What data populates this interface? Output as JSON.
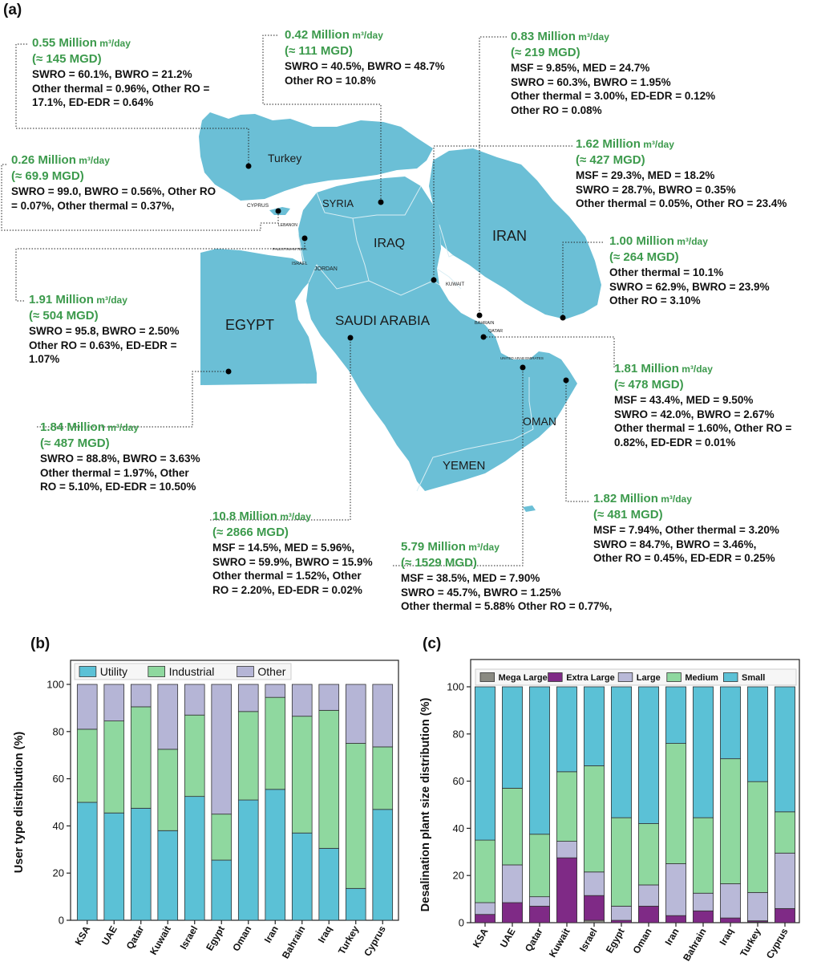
{
  "panel_labels": {
    "a": "(a)",
    "b": "(b)",
    "c": "(c)"
  },
  "map": {
    "country_labels": {
      "turkey": "Turkey",
      "syria": "SYRIA",
      "iraq": "IRAQ",
      "iran": "IRAN",
      "egypt": "EGYPT",
      "saudi": "SAUDI ARABIA",
      "oman": "OMAN",
      "yemen": "YEMEN",
      "cyprus": "CYPRUS",
      "lebanon": "LEBANON",
      "palestinian": "PALESTINIAN TERR.",
      "israel": "ISRAEL",
      "jordan": "JORDAN",
      "kuwait": "KUWAIT",
      "bahrain": "BAHRAIN",
      "qatar": "QATAR",
      "uae": "UNITED ARAB EMIRATES"
    },
    "colors": {
      "land": "#6bbfd6",
      "border": "#d9eef4",
      "capacity_text": "#3c9a4c"
    }
  },
  "callouts": [
    {
      "id": "turkey",
      "amount": "0.55 Million",
      "unit": "m³/day",
      "mgd": "(≈ 145 MGD)",
      "lines": [
        "SWRO = 60.1%, BWRO = 21.2%",
        "Other thermal = 0.96%, Other RO =",
        "17.1%, ED-EDR = 0.64%"
      ]
    },
    {
      "id": "iraq",
      "amount": "0.42 Million",
      "unit": "m³/day",
      "mgd": "(≈ 111 MGD)",
      "lines": [
        "SWRO = 40.5%, BWRO = 48.7%",
        "Other RO = 10.8%"
      ]
    },
    {
      "id": "bahrain",
      "amount": "0.83 Million",
      "unit": "m³/day",
      "mgd": "(≈ 219 MGD)",
      "lines": [
        "MSF = 9.85%, MED = 24.7%",
        "SWRO = 60.3%, BWRO = 1.95%",
        "Other thermal = 3.00%, ED-EDR = 0.12%",
        "Other RO = 0.08%"
      ]
    },
    {
      "id": "cyprus",
      "amount": "0.26 Million",
      "unit": "m³/day",
      "mgd": "(≈ 69.9 MGD)",
      "lines": [
        "SWRO = 99.0, BWRO = 0.56%, Other RO",
        "= 0.07%, Other thermal = 0.37%,"
      ]
    },
    {
      "id": "kuwait",
      "amount": "1.62 Million",
      "unit": "m³/day",
      "mgd": "(≈ 427 MGD)",
      "lines": [
        "MSF = 29.3%, MED = 18.2%",
        "SWRO = 28.7%, BWRO = 0.35%",
        "Other thermal = 0.05%, Other RO = 23.4%"
      ]
    },
    {
      "id": "iran",
      "amount": "1.00 Million",
      "unit": "m³/day",
      "mgd": "(≈ 264 MGD)",
      "lines": [
        "Other thermal = 10.1%",
        "SWRO = 62.9%, BWRO = 23.9%",
        "Other RO = 3.10%"
      ]
    },
    {
      "id": "israel",
      "amount": "1.91 Million",
      "unit": "m³/day",
      "mgd": "(≈ 504 MGD)",
      "lines": [
        "SWRO = 95.8, BWRO = 2.50%",
        "Other RO = 0.63%, ED-EDR =",
        "1.07%"
      ]
    },
    {
      "id": "qatar",
      "amount": "1.81 Million",
      "unit": "m³/day",
      "mgd": "(≈ 478 MGD)",
      "lines": [
        "MSF = 43.4%, MED = 9.50%",
        "SWRO = 42.0%, BWRO = 2.67%",
        "Other thermal =  1.60%, Other RO =",
        "0.82%, ED-EDR = 0.01%"
      ]
    },
    {
      "id": "egypt",
      "amount": "1.84 Million",
      "unit": "m³/day",
      "mgd": "(≈ 487 MGD)",
      "lines": [
        "SWRO = 88.8%, BWRO = 3.63%",
        "Other thermal = 1.97%, Other",
        "RO = 5.10%, ED-EDR = 10.50%"
      ]
    },
    {
      "id": "oman",
      "amount": "1.82 Million",
      "unit": "m³/day",
      "mgd": "(≈ 481 MGD)",
      "lines": [
        "MSF = 7.94%, Other thermal =  3.20%",
        "SWRO = 84.7%, BWRO = 3.46%,",
        "Other RO = 0.45%, ED-EDR = 0.25%"
      ]
    },
    {
      "id": "ksa",
      "amount": "10.8 Million",
      "unit": "m³/day",
      "mgd": "(≈ 2866 MGD)",
      "lines": [
        "MSF = 14.5%, MED = 5.96%,",
        "SWRO = 59.9%, BWRO = 15.9%",
        "Other thermal = 1.52%, Other",
        "RO = 2.20%, ED-EDR = 0.02%"
      ]
    },
    {
      "id": "uae",
      "amount": "5.79 Million",
      "unit": "m³/day",
      "mgd": "(≈ 1529 MGD)",
      "lines": [
        "MSF = 38.5%, MED = 7.90%",
        "SWRO = 45.7%, BWRO = 1.25%",
        "Other thermal = 5.88% Other RO = 0.77%,"
      ]
    }
  ],
  "chart_data": [
    {
      "type": "bar",
      "stacked": true,
      "ylabel": "User type distribution (%)",
      "ylim": [
        0,
        100
      ],
      "yticks": [
        0,
        20,
        40,
        60,
        80,
        100
      ],
      "grid": false,
      "legend_placement": "top",
      "categories": [
        "KSA",
        "UAE",
        "Qatar",
        "Kuwait",
        "Israel",
        "Egypt",
        "Oman",
        "Iran",
        "Bahrain",
        "Iraq",
        "Turkey",
        "Cyprus"
      ],
      "series": [
        {
          "name": "Utility",
          "color": "#5bc1d6",
          "values": [
            50,
            45.5,
            47.5,
            38,
            52.5,
            25.5,
            51,
            55.5,
            37,
            30.5,
            13.5,
            47
          ]
        },
        {
          "name": "Industrial",
          "color": "#8fd89f",
          "values": [
            31,
            39,
            43,
            34.5,
            34.5,
            19.5,
            37.5,
            39,
            49.5,
            58.5,
            61.5,
            26.5
          ]
        },
        {
          "name": "Other",
          "color": "#b5b5d6",
          "values": [
            19,
            15.5,
            9.5,
            27.5,
            13,
            55,
            11.5,
            5.5,
            13.5,
            11,
            25,
            26.5
          ]
        }
      ]
    },
    {
      "type": "bar",
      "stacked": true,
      "ylabel": "Desalination plant size distribution (%)",
      "ylim": [
        0,
        100
      ],
      "yticks": [
        0,
        20,
        40,
        60,
        80,
        100
      ],
      "grid": false,
      "legend_placement": "top",
      "categories": [
        "KSA",
        "UAE",
        "Qatar",
        "Kuwait",
        "Israel",
        "Egypt",
        "Oman",
        "Iran",
        "Bahrain",
        "Iraq",
        "Turkey",
        "Cyprus"
      ],
      "series": [
        {
          "name": "Mega Large",
          "color": "#8a8a82",
          "values": [
            0,
            0,
            0,
            0,
            1,
            0,
            0,
            0,
            0,
            0,
            0.3,
            0
          ]
        },
        {
          "name": "Extra Large",
          "color": "#7f2a86",
          "values": [
            3.5,
            8.5,
            7,
            27.5,
            10.5,
            1,
            7,
            3,
            5,
            2,
            0.5,
            6
          ]
        },
        {
          "name": "Large",
          "color": "#b9b9d8",
          "values": [
            5,
            16,
            4,
            7,
            10,
            6,
            9,
            22,
            7.5,
            14.5,
            12,
            23.5
          ]
        },
        {
          "name": "Medium",
          "color": "#8fd89f",
          "values": [
            26.5,
            32.5,
            26.5,
            29.5,
            45,
            37.5,
            26,
            51,
            32,
            53,
            47,
            17.5
          ]
        },
        {
          "name": "Small",
          "color": "#5bc1d6",
          "values": [
            65,
            43,
            62.5,
            36,
            33.5,
            55.5,
            58,
            24,
            55.5,
            30.5,
            40.2,
            53
          ]
        }
      ]
    }
  ]
}
